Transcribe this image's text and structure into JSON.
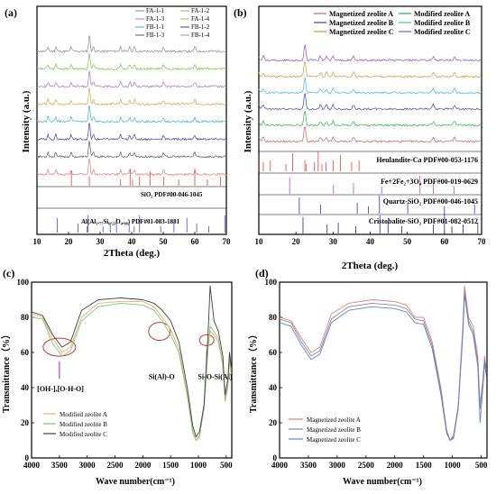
{
  "chart_data": [
    {
      "panel": "(a)",
      "type": "line",
      "xlabel": "2Theta (deg.)",
      "ylabel": "Intensity (a.u.)",
      "xlim": [
        10,
        70
      ],
      "xticks": [
        "10",
        "20",
        "30",
        "40",
        "50",
        "60",
        "70"
      ],
      "legend": [
        "FA-1-1",
        "FA-1-2",
        "FA-1-3",
        "FA-1-4",
        "FB-1-1",
        "FB-1-2",
        "FB-1-3",
        "FB-1-4"
      ],
      "series": [
        {
          "name": "FA-1-1",
          "color": "#8a8a8a"
        },
        {
          "name": "FA-1-2",
          "color": "#7cc242"
        },
        {
          "name": "FA-1-3",
          "color": "#a678b8"
        },
        {
          "name": "FA-1-4",
          "color": "#d9a43f"
        },
        {
          "name": "FB-1-1",
          "color": "#3cb3c8"
        },
        {
          "name": "FB-1-2",
          "color": "#3b3bb0"
        },
        {
          "name": "FB-1-3",
          "color": "#5b5b5b"
        },
        {
          "name": "FB-1-4",
          "color": "#e07b7b"
        }
      ],
      "peaks": [
        13.5,
        16.0,
        20.8,
        26.6,
        27.9,
        36.5,
        39.4,
        40.9,
        50.1,
        60.0
      ],
      "references": [
        {
          "label": "SiO₂ PDF#00-046-1045",
          "color": "#e04040",
          "peaks": [
            20.9,
            26.6,
            36.5,
            39.5,
            40.3,
            42.5,
            45.8,
            50.1,
            54.9,
            60.0,
            64.0,
            68.1
          ]
        },
        {
          "label": "Al(Al₁.₇₇Si₀.₂₃O₄.₈₈) PDF#01-083-1881",
          "color": "#4050c0",
          "peaks": [
            16.4,
            23.0,
            25.9,
            26.2,
            30.9,
            33.2,
            35.2,
            39.2,
            40.8,
            42.5,
            49.2,
            53.4,
            57.5,
            60.6,
            64.4,
            69.5
          ]
        }
      ]
    },
    {
      "panel": "(b)",
      "type": "line",
      "xlabel": "2Theta (deg.)",
      "ylabel": "Intensity (a.u.)",
      "xlim": [
        10,
        70
      ],
      "xticks": [
        "10",
        "20",
        "30",
        "40",
        "50",
        "60",
        "70"
      ],
      "legend": [
        "Magnetized zeolite A",
        "Modified zeolite A",
        "Magnetized zeolite B",
        "Modified zeolite B",
        "Magnetized zeolite C",
        "Modified zeolite C"
      ],
      "series": [
        {
          "name": "Magnetized zeolite A",
          "color": "#c86060"
        },
        {
          "name": "Modified zeolite A",
          "color": "#2ab040"
        },
        {
          "name": "Magnetized zeolite B",
          "color": "#4040c0"
        },
        {
          "name": "Modified zeolite B",
          "color": "#40b8d8"
        },
        {
          "name": "Magnetized zeolite C",
          "color": "#cc9a3a"
        },
        {
          "name": "Modified zeolite C",
          "color": "#9050c0"
        }
      ],
      "peaks": [
        9.9,
        11.2,
        22.4,
        26.6,
        28.2,
        30.0,
        35.5,
        57.0,
        62.7
      ],
      "references": [
        {
          "label": "Heulandite-Ca PDF#00-053-1176",
          "color": "#e04040",
          "peaks": [
            9.9,
            11.2,
            13.1,
            17.3,
            19.1,
            22.4,
            22.8,
            25.0,
            26.0,
            27.0,
            28.1,
            30.0,
            32.0,
            35.0,
            37.0
          ]
        },
        {
          "label": "Fe+2Fe₂+3O₄ PDF#00-019-0629",
          "color": "#d040d0",
          "peaks": [
            18.3,
            30.1,
            35.5,
            43.1,
            53.4,
            57.0,
            62.6
          ]
        },
        {
          "label": "Quartz-SiO₂ PDF#00-046-1045",
          "color": "#3030c0",
          "peaks": [
            20.9,
            26.6,
            36.5,
            39.5,
            42.5,
            50.1,
            60.0,
            68.1
          ]
        },
        {
          "label": "Cristobalite-SiO₂ PDF#01-082-0512",
          "color": "#2020a0",
          "peaks": [
            21.9,
            28.4,
            31.4,
            36.1,
            42.6,
            44.8,
            48.5,
            57.0,
            60.0,
            62.0,
            65.0,
            69.0
          ]
        }
      ]
    },
    {
      "panel": "(c)",
      "type": "line",
      "xlabel": "Wave number(cm⁻¹)",
      "ylabel": "Transmittance（%）",
      "xlim": [
        4000,
        400
      ],
      "ylim": [
        0,
        100
      ],
      "xticks": [
        "4000",
        "3500",
        "3000",
        "2500",
        "2000",
        "1500",
        "1000",
        "500"
      ],
      "yticks": [
        "0",
        "20",
        "40",
        "60",
        "80",
        "100"
      ],
      "annotations": [
        "[OH-],[O-H-O]",
        "Si(Al)-O",
        "Si-O-Si(Al)"
      ],
      "series": [
        {
          "name": "Modified zeolite A",
          "color": "#e8b070",
          "x": [
            4000,
            3800,
            3620,
            3450,
            3300,
            3100,
            2800,
            2400,
            2000,
            1800,
            1650,
            1500,
            1350,
            1200,
            1100,
            1040,
            980,
            900,
            820,
            790,
            720,
            640,
            560,
            520,
            470,
            440,
            410
          ],
          "y": [
            82,
            80,
            68,
            60,
            63,
            80,
            88,
            89,
            89,
            86,
            80,
            73,
            62,
            37,
            16,
            10,
            13,
            28,
            64,
            72,
            70,
            66,
            52,
            32,
            40,
            55,
            48
          ]
        },
        {
          "name": "Modified zeolite B",
          "color": "#78c878",
          "x": [
            4000,
            3800,
            3620,
            3450,
            3300,
            3100,
            2800,
            2400,
            2000,
            1800,
            1650,
            1500,
            1350,
            1200,
            1100,
            1040,
            980,
            900,
            820,
            790,
            720,
            640,
            560,
            520,
            470,
            440,
            410
          ],
          "y": [
            80,
            79,
            65,
            58,
            61,
            78,
            86,
            88,
            87,
            84,
            78,
            70,
            60,
            35,
            14,
            10,
            12,
            28,
            66,
            75,
            72,
            68,
            54,
            33,
            42,
            58,
            50
          ]
        },
        {
          "name": "Modified zeolite C",
          "color": "#404040",
          "x": [
            4000,
            3800,
            3620,
            3450,
            3300,
            3100,
            2800,
            2400,
            2000,
            1800,
            1650,
            1500,
            1350,
            1200,
            1100,
            1040,
            980,
            900,
            820,
            790,
            720,
            640,
            560,
            520,
            470,
            440,
            410
          ],
          "y": [
            83,
            81,
            70,
            63,
            66,
            84,
            90,
            91,
            90,
            88,
            84,
            78,
            66,
            40,
            18,
            12,
            15,
            30,
            75,
            98,
            78,
            72,
            58,
            36,
            45,
            60,
            52
          ]
        }
      ]
    },
    {
      "panel": "(d)",
      "type": "line",
      "xlabel": "Wave number(cm⁻¹)",
      "ylabel": "Transmittance（%）",
      "xlim": [
        4000,
        400
      ],
      "ylim": [
        0,
        100
      ],
      "xticks": [
        "4000",
        "3500",
        "3000",
        "2500",
        "2000",
        "1500",
        "1000",
        "500"
      ],
      "yticks": [
        "0",
        "20",
        "40",
        "60",
        "80",
        "100"
      ],
      "series": [
        {
          "name": "Magnetized zeolite A",
          "color": "#e08080",
          "x": [
            4000,
            3800,
            3620,
            3450,
            3300,
            3100,
            2800,
            2400,
            2000,
            1800,
            1650,
            1500,
            1350,
            1200,
            1100,
            1040,
            980,
            900,
            820,
            790,
            720,
            640,
            560,
            520,
            470,
            440,
            410
          ],
          "y": [
            80,
            78,
            68,
            60,
            63,
            82,
            88,
            90,
            89,
            87,
            80,
            80,
            66,
            40,
            16,
            10,
            13,
            30,
            75,
            98,
            80,
            75,
            58,
            30,
            45,
            58,
            50
          ]
        },
        {
          "name": "Magnetized zeolite B",
          "color": "#8a8a8a",
          "x": [
            4000,
            3800,
            3620,
            3450,
            3300,
            3100,
            2800,
            2400,
            2000,
            1800,
            1650,
            1500,
            1350,
            1200,
            1100,
            1040,
            980,
            900,
            820,
            790,
            720,
            640,
            560,
            520,
            470,
            440,
            410
          ],
          "y": [
            79,
            77,
            66,
            58,
            61,
            79,
            86,
            88,
            87,
            85,
            79,
            78,
            64,
            38,
            15,
            10,
            12,
            29,
            72,
            95,
            78,
            72,
            55,
            28,
            43,
            56,
            48
          ]
        },
        {
          "name": "Magnetized zeolite C",
          "color": "#6080d8",
          "x": [
            4000,
            3800,
            3620,
            3450,
            3300,
            3100,
            2800,
            2400,
            2000,
            1800,
            1650,
            1500,
            1350,
            1200,
            1100,
            1040,
            980,
            900,
            820,
            790,
            720,
            640,
            560,
            520,
            470,
            440,
            410
          ],
          "y": [
            77,
            75,
            64,
            56,
            59,
            77,
            84,
            86,
            85,
            83,
            77,
            76,
            62,
            36,
            14,
            10,
            11,
            28,
            70,
            93,
            76,
            70,
            52,
            20,
            40,
            54,
            46
          ]
        }
      ]
    }
  ]
}
